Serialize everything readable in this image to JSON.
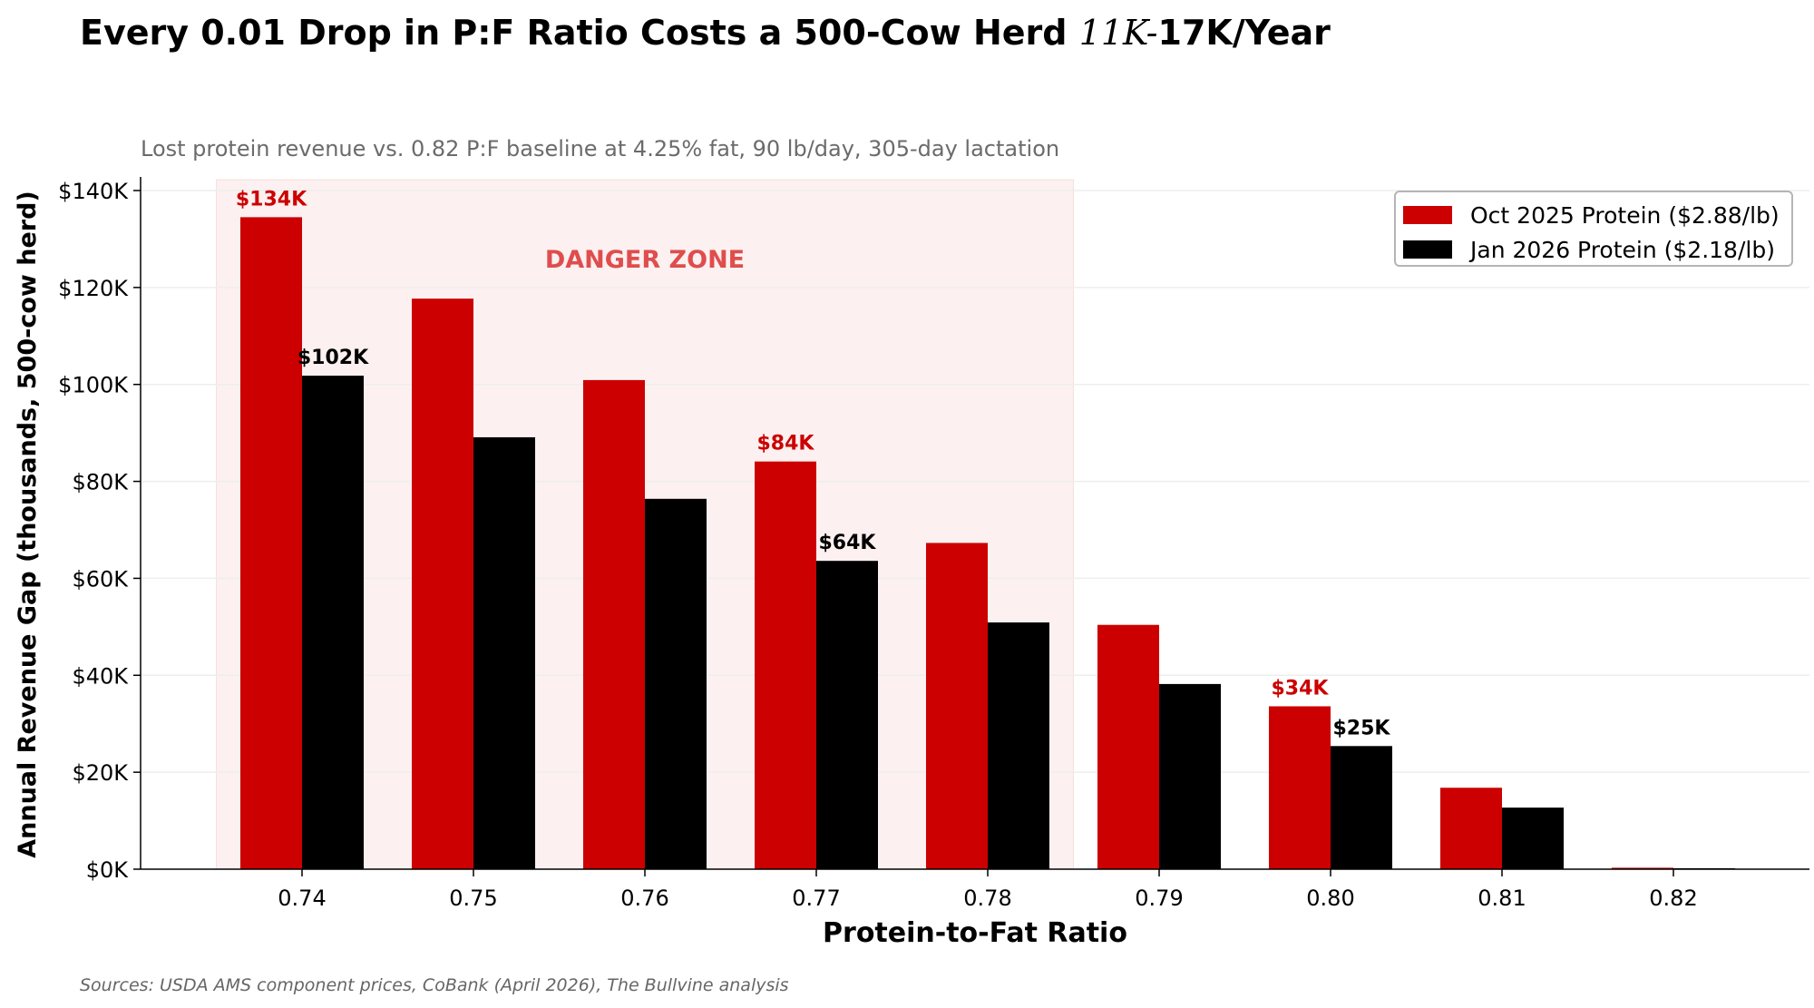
{
  "chart_data": {
    "type": "bar",
    "title_text": "Every 0.01 Drop in P:F Ratio Costs a 500-Cow Herd ",
    "title_math": "11K-",
    "title_end": "17K/Year",
    "subtitle": "Lost protein revenue vs. 0.82 P:F baseline at 4.25% fat, 90 lb/day, 305-day lactation",
    "xlabel": "Protein-to-Fat Ratio",
    "ylabel": "Annual Revenue Gap (thousands, 500-cow herd)",
    "categories": [
      "0.74",
      "0.75",
      "0.76",
      "0.77",
      "0.78",
      "0.79",
      "0.80",
      "0.81",
      "0.82"
    ],
    "series": [
      {
        "name": "Oct 2025 Protein ($2.88/lb)",
        "color": "#cc0000",
        "values": [
          134.5,
          117.7,
          100.9,
          84.1,
          67.3,
          50.4,
          33.6,
          16.8,
          0.3
        ]
      },
      {
        "name": "Jan 2026 Protein ($2.18/lb)",
        "color": "#000000",
        "values": [
          101.8,
          89.1,
          76.4,
          63.6,
          50.9,
          38.2,
          25.4,
          12.7,
          0.2
        ]
      }
    ],
    "ylim": [
      0,
      142
    ],
    "yticks": [
      0,
      20,
      40,
      60,
      80,
      100,
      120,
      140
    ],
    "ytick_labels": [
      "$0K",
      "$20K",
      "$40K",
      "$60K",
      "$80K",
      "$100K",
      "$120K",
      "$140K"
    ],
    "annotations": [
      {
        "series": 0,
        "index": 0,
        "text": "$134K"
      },
      {
        "series": 1,
        "index": 0,
        "text": "$102K"
      },
      {
        "series": 0,
        "index": 3,
        "text": "$84K"
      },
      {
        "series": 1,
        "index": 3,
        "text": "$64K"
      },
      {
        "series": 0,
        "index": 6,
        "text": "$34K"
      },
      {
        "series": 1,
        "index": 6,
        "text": "$25K"
      }
    ],
    "danger_zone": {
      "label": "DANGER ZONE",
      "x_from": 0.735,
      "x_to": 0.785,
      "color": "#d93030"
    },
    "grid": true,
    "legend_position": "top-right",
    "source": "Sources: USDA AMS component prices, CoBank (April 2026), The Bullvine analysis"
  }
}
